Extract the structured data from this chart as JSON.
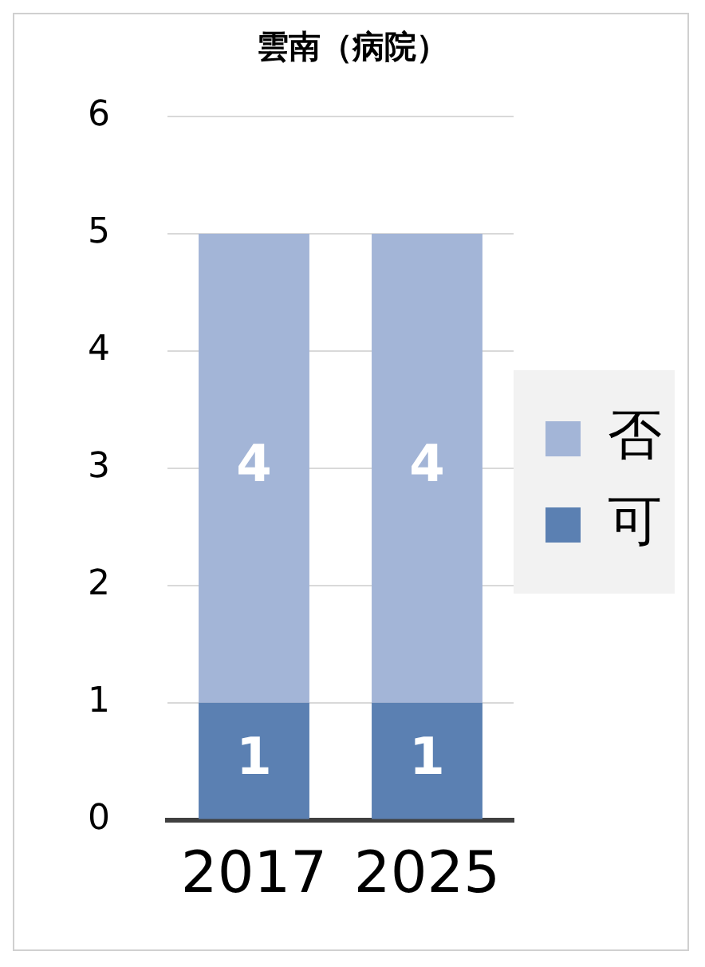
{
  "chart_data": {
    "type": "bar",
    "title": "雲南（病院）",
    "categories": [
      "2017",
      "2025"
    ],
    "stacked": true,
    "series": [
      {
        "name": "可",
        "color": "#5b80b2",
        "values": [
          1,
          1
        ]
      },
      {
        "name": "否",
        "color": "#a3b5d7",
        "values": [
          4,
          4
        ]
      }
    ],
    "ylim": [
      0,
      6
    ],
    "yticks": [
      0,
      1,
      2,
      3,
      4,
      5,
      6
    ],
    "grid": "y",
    "legend": "right",
    "data_labels": true
  }
}
